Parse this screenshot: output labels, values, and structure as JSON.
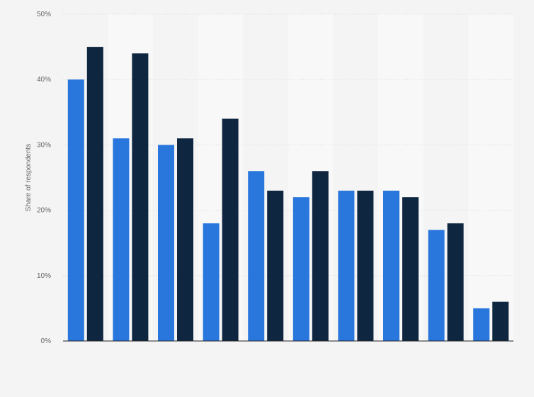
{
  "chart_data": {
    "type": "bar",
    "categories": [
      "",
      "",
      "",
      "",
      "",
      "",
      "",
      "",
      "",
      ""
    ],
    "series": [
      {
        "values": [
          40,
          31,
          30,
          18,
          26,
          22,
          23,
          23,
          17,
          5
        ]
      },
      {
        "values": [
          45,
          44,
          31,
          34,
          23,
          26,
          23,
          22,
          18,
          6
        ]
      }
    ],
    "ylabel": "Share of respondents",
    "ylim": [
      0,
      50
    ],
    "yticks": [
      0,
      10,
      20,
      30,
      40,
      50
    ],
    "ytick_labels": [
      "0%",
      "10%",
      "20%",
      "30%",
      "40%",
      "50%"
    ],
    "grid": true,
    "legend": "none",
    "colors": {
      "series_1": "#2977dd",
      "series_2": "#0f2640",
      "background": "#f4f4f4",
      "band": "#f8f8f8",
      "grid": "#dcdcdc",
      "axis": "#222222",
      "text": "#666666"
    }
  }
}
